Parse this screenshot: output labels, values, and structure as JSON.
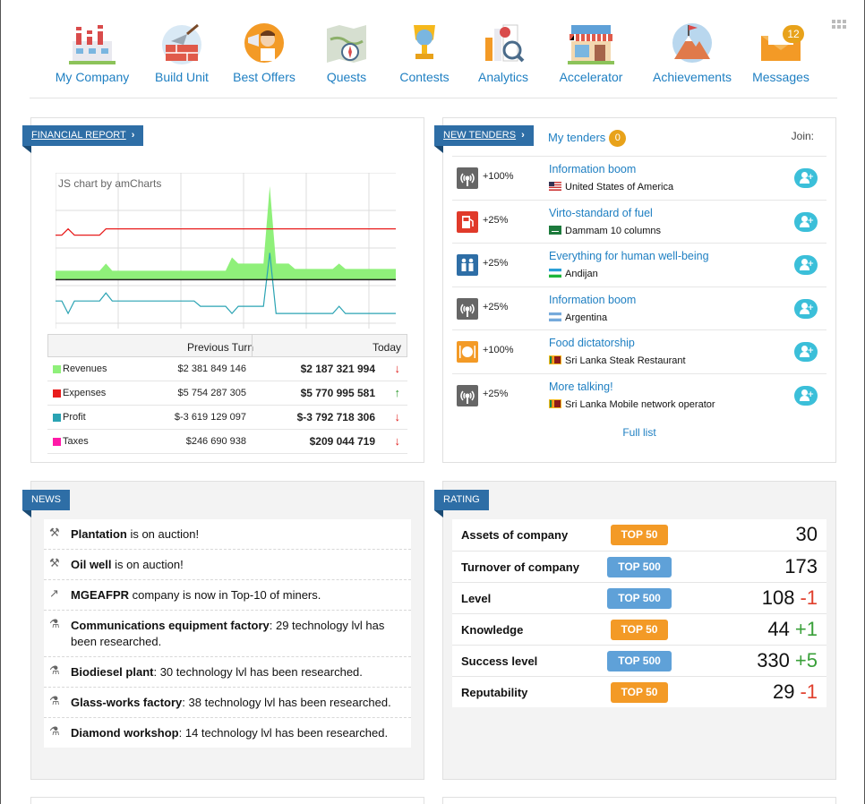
{
  "nav": {
    "items": [
      {
        "label": "My Company",
        "icon": "factory-icon"
      },
      {
        "label": "Build Unit",
        "icon": "trowel-bricks-icon"
      },
      {
        "label": "Best Offers",
        "icon": "megaphone-person-icon"
      },
      {
        "label": "Quests",
        "icon": "map-compass-icon"
      },
      {
        "label": "Contests",
        "icon": "trophy-icon"
      },
      {
        "label": "Analytics",
        "icon": "analytics-magnifier-icon"
      },
      {
        "label": "Accelerator",
        "icon": "storefront-icon"
      },
      {
        "label": "Achievements",
        "icon": "mountain-flag-icon"
      },
      {
        "label": "Messages",
        "icon": "envelope-icon"
      }
    ],
    "messages_count": "12"
  },
  "financial": {
    "title": "FINANCIAL REPORT",
    "chart_credit": "JS chart by amCharts",
    "col_prev": "Previous Turn",
    "col_today": "Today",
    "rows": [
      {
        "name": "Revenues",
        "prev": "$2 381 849 146",
        "today": "$2 187 321 994",
        "trend": "down",
        "color": "#8ff07a"
      },
      {
        "name": "Expenses",
        "prev": "$5 754 287 305",
        "today": "$5 770 995 581",
        "trend": "up",
        "color": "#e81c1c"
      },
      {
        "name": "Profit",
        "prev": "$-3 619 129 097",
        "today": "$-3 792 718 306",
        "trend": "down",
        "color": "#2aa3b3"
      },
      {
        "name": "Taxes",
        "prev": "$246 690 938",
        "today": "$209 044 719",
        "trend": "down",
        "color": "#ff1aa8"
      }
    ]
  },
  "chart_data": {
    "type": "line",
    "title": "",
    "xlabel": "",
    "ylabel": "",
    "grid": true,
    "series": [
      {
        "name": "Revenues",
        "type": "area",
        "color": "#8ff07a",
        "values": [
          0.1,
          0.1,
          0.1,
          0.1,
          0.1,
          0.1,
          0.1,
          0.1,
          0.18,
          0.1,
          0.1,
          0.1,
          0.1,
          0.1,
          0.1,
          0.1,
          0.1,
          0.1,
          0.1,
          0.1,
          0.1,
          0.1,
          0.1,
          0.1,
          0.1,
          0.1,
          0.1,
          0.1,
          0.25,
          0.18,
          0.18,
          0.18,
          0.18,
          0.18,
          1.05,
          0.18,
          0.18,
          0.18,
          0.12,
          0.12,
          0.12,
          0.12,
          0.12,
          0.12,
          0.12,
          0.18,
          0.12,
          0.12,
          0.12,
          0.12,
          0.12,
          0.12,
          0.12,
          0.12,
          0.12
        ]
      },
      {
        "name": "Expenses",
        "type": "line",
        "color": "#e81c1c",
        "values": [
          0.5,
          0.5,
          0.57,
          0.5,
          0.5,
          0.5,
          0.5,
          0.5,
          0.57,
          0.57,
          0.57,
          0.57,
          0.57,
          0.57,
          0.57,
          0.57,
          0.57,
          0.57,
          0.57,
          0.57,
          0.57,
          0.57,
          0.57,
          0.57,
          0.57,
          0.57,
          0.57,
          0.57,
          0.57,
          0.57,
          0.57,
          0.57,
          0.57,
          0.57,
          0.57,
          0.57,
          0.57,
          0.57,
          0.57,
          0.57,
          0.57,
          0.57,
          0.57,
          0.57,
          0.57,
          0.57,
          0.57,
          0.57,
          0.57,
          0.57,
          0.57,
          0.57,
          0.57,
          0.57,
          0.57
        ]
      },
      {
        "name": "Profit",
        "type": "line",
        "color": "#2aa3b3",
        "values": [
          -0.24,
          -0.24,
          -0.38,
          -0.24,
          -0.24,
          -0.24,
          -0.24,
          -0.24,
          -0.15,
          -0.24,
          -0.24,
          -0.24,
          -0.24,
          -0.24,
          -0.24,
          -0.24,
          -0.24,
          -0.24,
          -0.24,
          -0.24,
          -0.24,
          -0.24,
          -0.24,
          -0.3,
          -0.3,
          -0.3,
          -0.3,
          -0.3,
          -0.38,
          -0.3,
          -0.3,
          -0.3,
          -0.3,
          -0.3,
          0.3,
          -0.38,
          -0.38,
          -0.38,
          -0.38,
          -0.38,
          -0.38,
          -0.38,
          -0.38,
          -0.38,
          -0.38,
          -0.3,
          -0.38,
          -0.38,
          -0.38,
          -0.38,
          -0.38,
          -0.38,
          -0.38,
          -0.38,
          -0.38
        ]
      },
      {
        "name": "Taxes",
        "type": "line",
        "color": "#222222",
        "values": [
          0.0,
          0.0,
          0.0,
          0.0,
          0.0,
          0.0,
          0.0,
          0.0,
          0.0,
          0.0,
          0.0,
          0.0,
          0.0,
          0.0,
          0.0,
          0.0,
          0.0,
          0.0,
          0.0,
          0.0,
          0.0,
          0.0,
          0.0,
          0.0,
          0.0,
          0.0,
          0.0,
          0.0,
          0.0,
          0.0,
          0.0,
          0.0,
          0.0,
          0.0,
          0.0,
          0.0,
          0.0,
          0.0,
          0.0,
          0.0,
          0.0,
          0.0,
          0.0,
          0.0,
          0.0,
          0.0,
          0.0,
          0.0,
          0.0,
          0.0,
          0.0,
          0.0,
          0.0,
          0.0,
          0.0
        ]
      }
    ],
    "ylim": [
      -0.55,
      1.2
    ]
  },
  "tenders": {
    "title": "NEW TENDERS",
    "my_tenders": "My tenders",
    "my_tenders_count": "0",
    "join_label": "Join:",
    "full_list": "Full list",
    "rows": [
      {
        "icon": "radio-tower-icon",
        "icon_color": "#666666",
        "pct": "+100%",
        "name": "Information boom",
        "place": "United States of America",
        "flag": "us-flag-icon"
      },
      {
        "icon": "fuel-pump-icon",
        "icon_color": "#e03a2a",
        "pct": "+25%",
        "name": "Virto-standard of fuel",
        "place": "Dammam 10 columns",
        "flag": "saudi-flag-icon"
      },
      {
        "icon": "people-icon",
        "icon_color": "#2e6ea6",
        "pct": "+25%",
        "name": "Everything for human well-being",
        "place": "Andijan",
        "flag": "uzbek-flag-icon"
      },
      {
        "icon": "radio-tower-icon",
        "icon_color": "#666666",
        "pct": "+25%",
        "name": "Information boom",
        "place": "Argentina",
        "flag": "argentina-flag-icon"
      },
      {
        "icon": "food-plate-icon",
        "icon_color": "#f39a26",
        "pct": "+100%",
        "name": "Food dictatorship",
        "place": "Sri Lanka Steak Restaurant",
        "flag": "srilanka-flag-icon"
      },
      {
        "icon": "radio-tower-icon",
        "icon_color": "#666666",
        "pct": "+25%",
        "name": "More talking!",
        "place": "Sri Lanka Mobile network operator",
        "flag": "srilanka-flag-icon"
      }
    ]
  },
  "news": {
    "title": "NEWS",
    "items": [
      {
        "icon": "hammer-icon",
        "bold": "Plantation",
        "rest": " is on auction!"
      },
      {
        "icon": "hammer-icon",
        "bold": "Oil well",
        "rest": " is on auction!"
      },
      {
        "icon": "arrow-up-icon",
        "bold": "MGEAFPR",
        "rest": " company is now in Top-10 of miners."
      },
      {
        "icon": "flask-icon",
        "bold": "Communications equipment factory",
        "rest": ": 29 technology lvl has been researched."
      },
      {
        "icon": "flask-icon",
        "bold": "Biodiesel plant",
        "rest": ": 30 technology lvl has been researched."
      },
      {
        "icon": "flask-icon",
        "bold": "Glass-works factory",
        "rest": ": 38 technology lvl has been researched."
      },
      {
        "icon": "flask-icon",
        "bold": "Diamond workshop",
        "rest": ": 14 technology lvl has been researched."
      }
    ]
  },
  "rating": {
    "title": "RATING",
    "rows": [
      {
        "name": "Assets of company",
        "tag": "TOP 50",
        "tag_color": "orange",
        "value": "30",
        "delta": "",
        "delta_sign": ""
      },
      {
        "name": "Turnover of company",
        "tag": "TOP 500",
        "tag_color": "blue",
        "value": "173",
        "delta": "",
        "delta_sign": ""
      },
      {
        "name": "Level",
        "tag": "TOP 500",
        "tag_color": "blue",
        "value": "108",
        "delta": "-1",
        "delta_sign": "neg"
      },
      {
        "name": "Knowledge",
        "tag": "TOP 50",
        "tag_color": "orange",
        "value": "44",
        "delta": "+1",
        "delta_sign": "pos"
      },
      {
        "name": "Success level",
        "tag": "TOP 500",
        "tag_color": "blue",
        "value": "330",
        "delta": "+5",
        "delta_sign": "pos"
      },
      {
        "name": "Reputability",
        "tag": "TOP 50",
        "tag_color": "orange",
        "value": "29",
        "delta": "-1",
        "delta_sign": "neg"
      }
    ]
  }
}
